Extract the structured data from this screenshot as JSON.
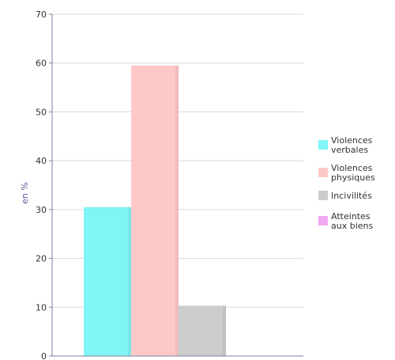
{
  "chart_data": {
    "type": "bar",
    "ylabel": "en %",
    "ylim": [
      0,
      70
    ],
    "yticks": [
      0,
      10,
      20,
      30,
      40,
      50,
      60,
      70
    ],
    "grid": true,
    "legend_position": "right",
    "categories": [
      "Violences verbales",
      "Violences physiques",
      "Incivilités",
      "Atteintes aux biens"
    ],
    "values": [
      30.5,
      59.5,
      10.3,
      0
    ],
    "colors": [
      "#7ff5f5",
      "#ffc8c8",
      "#cccccc",
      "#f0a8f0"
    ],
    "legend": [
      {
        "line1": "Violences",
        "line2": "verbales"
      },
      {
        "line1": "Violences",
        "line2": "physiques"
      },
      {
        "line1": "Incivilités",
        "line2": ""
      },
      {
        "line1": "Atteintes",
        "line2": "aux biens"
      }
    ]
  }
}
